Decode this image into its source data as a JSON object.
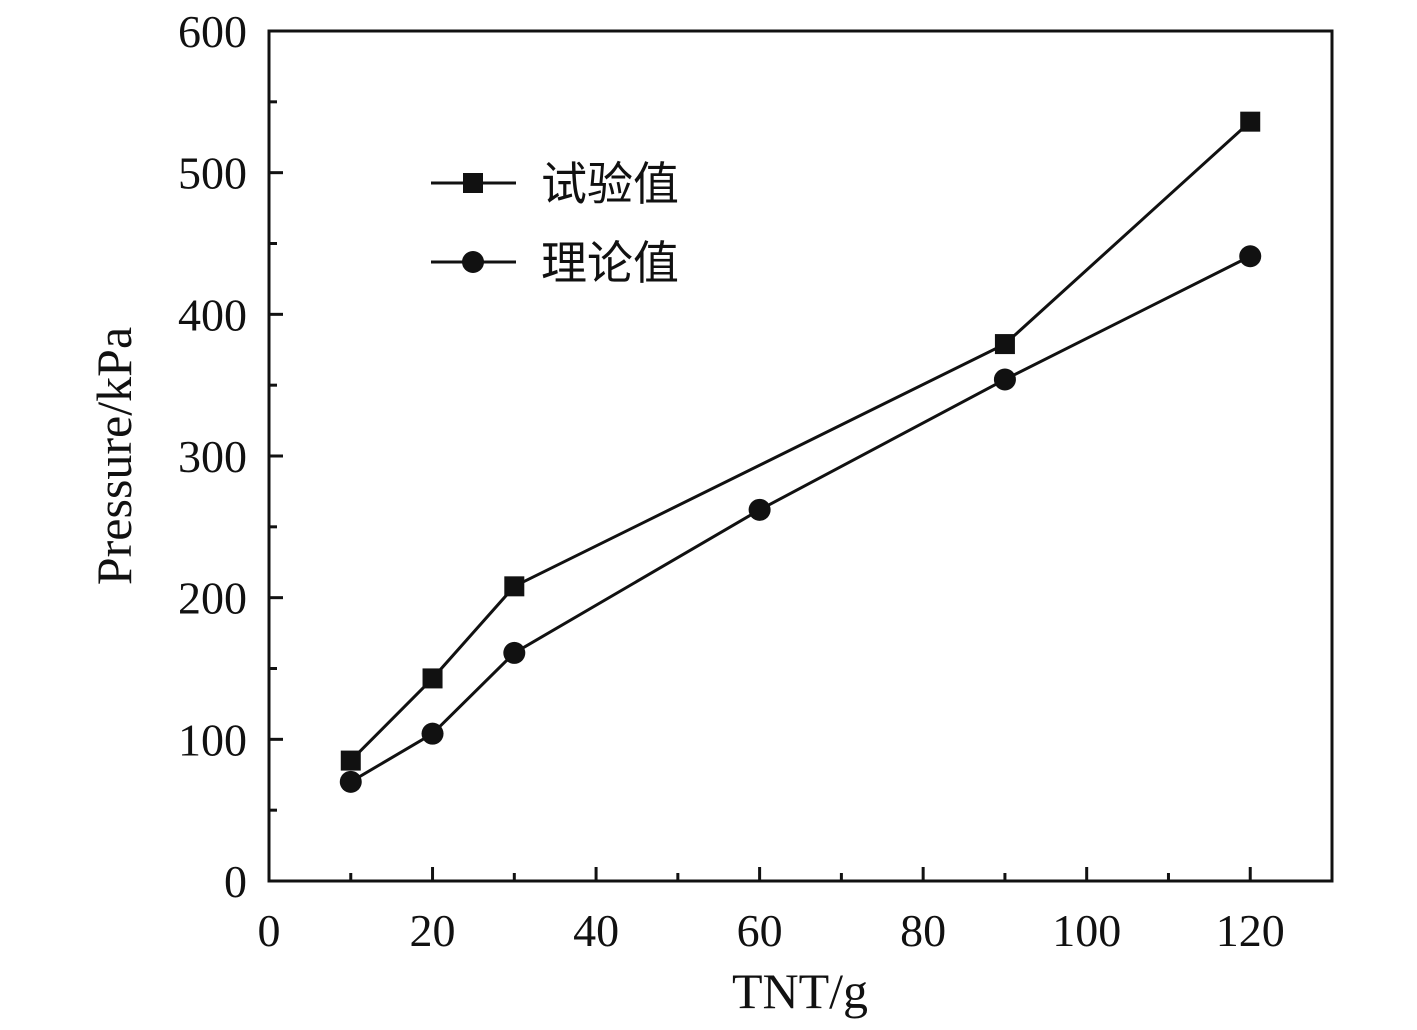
{
  "chart_data": {
    "type": "line",
    "xlabel": "TNT/g",
    "ylabel": "Pressure/kPa",
    "xlim": [
      0,
      130
    ],
    "ylim": [
      0,
      600
    ],
    "x_ticks": [
      0,
      20,
      40,
      60,
      80,
      100,
      120
    ],
    "y_ticks": [
      0,
      100,
      200,
      300,
      400,
      500,
      600
    ],
    "grid": false,
    "legend_position": "top-left",
    "series": [
      {
        "name": "试验值",
        "marker": "square",
        "color": "#111111",
        "x": [
          10,
          20,
          30,
          90,
          120
        ],
        "values": [
          85,
          143,
          208,
          379,
          536
        ]
      },
      {
        "name": "理论值",
        "marker": "circle",
        "color": "#111111",
        "x": [
          10,
          20,
          30,
          60,
          90,
          120
        ],
        "values": [
          70,
          104,
          161,
          262,
          354,
          441
        ]
      }
    ]
  }
}
